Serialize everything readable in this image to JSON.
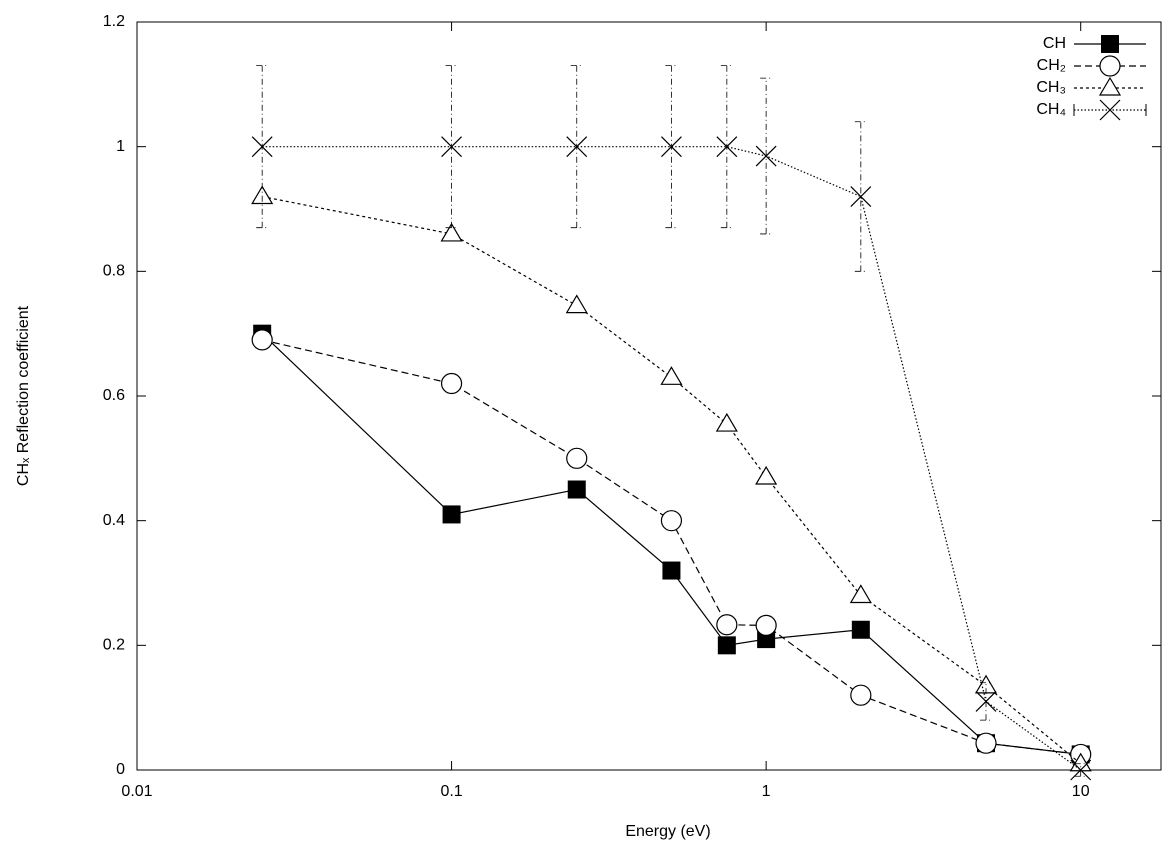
{
  "chart_data": {
    "type": "line",
    "x_label": "Energy (eV)",
    "y_label": "CHₓ Reflection coefficient",
    "log_x": true,
    "xlim": [
      0.01,
      18
    ],
    "xticks": [
      0.01,
      0.1,
      1,
      10
    ],
    "ylim": [
      0,
      1.2
    ],
    "yticks": [
      0,
      0.2,
      0.4,
      0.6,
      0.8,
      1,
      1.2
    ],
    "legend": "top-right",
    "x": [
      0.025,
      0.1,
      0.25,
      0.5,
      0.75,
      1,
      2,
      5,
      10
    ],
    "series": [
      {
        "name": "CH",
        "color": "#000000",
        "marker": "square",
        "dash": "none",
        "values": [
          0.7,
          0.41,
          0.45,
          0.32,
          0.2,
          0.21,
          0.225,
          0.043,
          0.025
        ]
      },
      {
        "name": "CH₂",
        "color": "#000000",
        "marker": "circle",
        "dash": "7,4",
        "values": [
          0.69,
          0.62,
          0.5,
          0.4,
          0.233,
          0.232,
          0.12,
          0.043,
          0.025
        ]
      },
      {
        "name": "CH₃",
        "color": "#000000",
        "marker": "triangle",
        "dash": "3,3",
        "values": [
          0.92,
          0.86,
          0.745,
          0.63,
          0.555,
          0.47,
          0.28,
          0.135,
          0.01
        ]
      },
      {
        "name": "CH₄",
        "color": "#000000",
        "marker": "cross",
        "dash": "1.5,2",
        "values": [
          1,
          1,
          1,
          1,
          1,
          0.985,
          0.92,
          0.11,
          0.0
        ],
        "errors": [
          0.13,
          0.13,
          0.13,
          0.13,
          0.13,
          0.125,
          0.12,
          0.03,
          0.01
        ]
      }
    ]
  }
}
